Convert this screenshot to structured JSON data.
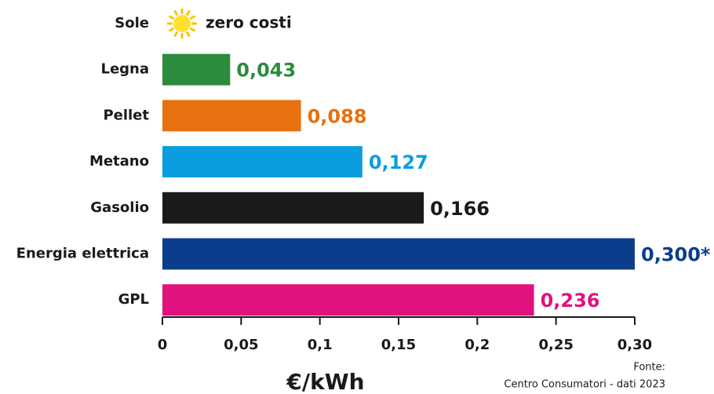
{
  "chart_data": {
    "type": "barh",
    "categories": [
      "Sole",
      "Legna",
      "Pellet",
      "Metano",
      "Gasolio",
      "Energia elettrica",
      "GPL"
    ],
    "values": [
      0,
      0.043,
      0.088,
      0.127,
      0.166,
      0.3,
      0.236
    ],
    "value_labels": [
      "zero costi",
      "0,043",
      "0,088",
      "0,127",
      "0,166",
      "0,300*",
      "0,236"
    ],
    "colors": [
      "#1a1a1a",
      "#2a8c3c",
      "#e8700e",
      "#0a9ee0",
      "#1a1a1a",
      "#0b3d8c",
      "#e0127e"
    ],
    "xlim": [
      0,
      0.3
    ],
    "xticks": [
      0,
      {
        "value": 0.05,
        "label": "0,05"
      },
      {
        "value": 0.1,
        "label": "0,1"
      },
      {
        "value": 0.15,
        "label": "0,15"
      },
      {
        "value": 0.2,
        "label": "0,2"
      },
      {
        "value": 0.25,
        "label": "0,25"
      },
      {
        "value": 0.3,
        "label": "0,30"
      }
    ],
    "xlabel": "€/kWh",
    "source": [
      "Fonte:",
      "Centro Consumatori - dati 2023"
    ]
  }
}
